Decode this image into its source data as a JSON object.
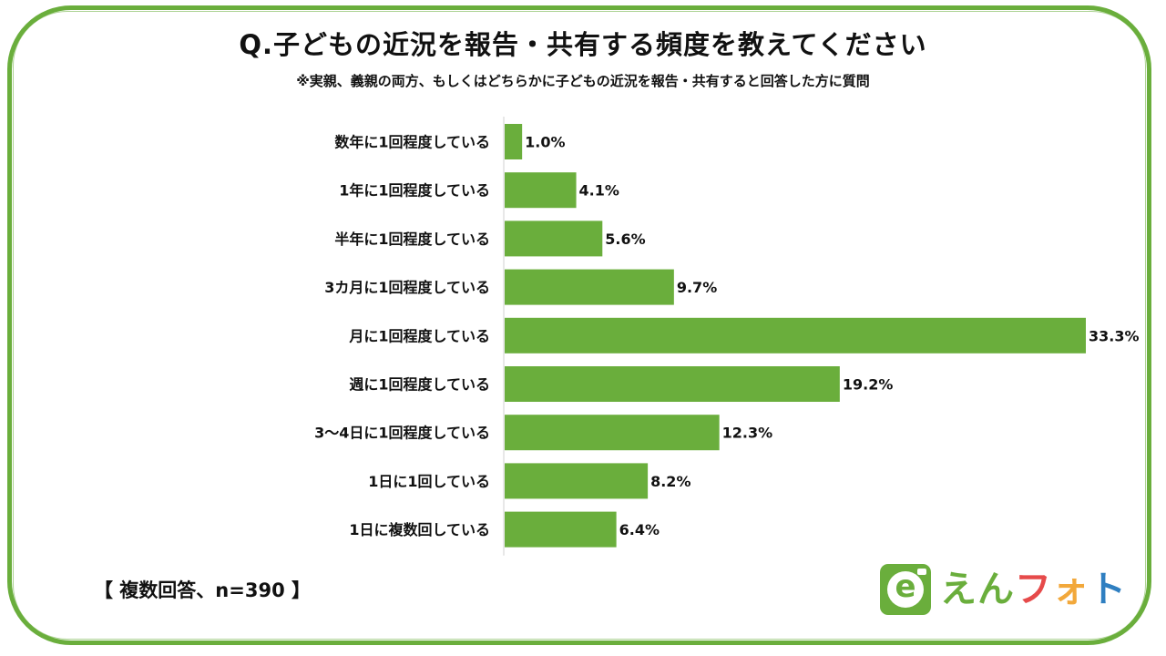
{
  "title": "Q.子どもの近況を報告・共有する頻度を教えてください",
  "subtitle": "※実親、義親の両方、もしくはどちらかに子どもの近況を報告・共有すると回答した方に質問",
  "note": "【 複数回答、n=390 】",
  "logo": {
    "icon": "e-camera-logo-icon",
    "text_parts": [
      {
        "text": "え",
        "color": "#6aae3c"
      },
      {
        "text": "ん",
        "color": "#6aae3c"
      },
      {
        "text": "フ",
        "color": "#e64a4a"
      },
      {
        "text": "ォ",
        "color": "#f2a83b"
      },
      {
        "text": "ト",
        "color": "#2f7fc1"
      }
    ]
  },
  "colors": {
    "bar": "#6aae3c",
    "frame": "#6aae3c",
    "axis": "#d0d0d0"
  },
  "chart_data": {
    "type": "bar",
    "orientation": "horizontal",
    "categories": [
      "数年に1回程度している",
      "1年に1回程度している",
      "半年に1回程度している",
      "3カ月に1回程度している",
      "月に1回程度している",
      "週に1回程度している",
      "3〜4日に1回程度している",
      "1日に1回している",
      "1日に複数回している"
    ],
    "values": [
      1.0,
      4.1,
      5.6,
      9.7,
      33.3,
      19.2,
      12.3,
      8.2,
      6.4
    ],
    "value_labels": [
      "1.0%",
      "4.1%",
      "5.6%",
      "9.7%",
      "33.3%",
      "19.2%",
      "12.3%",
      "8.2%",
      "6.4%"
    ],
    "unit": "%",
    "xlim": [
      0,
      33.3
    ],
    "grid": false,
    "legend": "none"
  }
}
